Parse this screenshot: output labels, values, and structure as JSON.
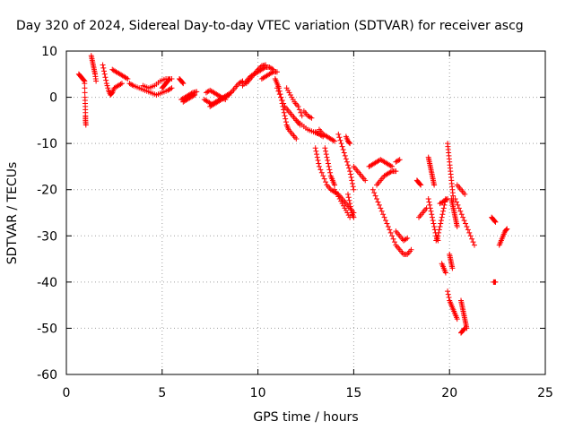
{
  "chart_data": {
    "type": "scatter",
    "title": "Day 320 of 2024, Sidereal Day-to-day VTEC variation (SDTVAR) for receiver ascg",
    "xlabel": "GPS time / hours",
    "ylabel": "SDTVAR / TECUs",
    "xlim": [
      0,
      25
    ],
    "ylim": [
      -60,
      10
    ],
    "x_ticks": [
      0,
      5,
      10,
      15,
      20,
      25
    ],
    "y_ticks": [
      10,
      0,
      -10,
      -20,
      -30,
      -40,
      -50,
      -60
    ],
    "grid": true,
    "marker": "+",
    "series_color": "#ff0000",
    "segments": [
      {
        "name": "s1",
        "x": [
          0.65,
          0.75,
          0.85,
          0.95
        ],
        "y": [
          5,
          4.5,
          4,
          3.5
        ]
      },
      {
        "name": "s2",
        "x": [
          0.95,
          0.97,
          0.99,
          1.0,
          1.0,
          1.02
        ],
        "y": [
          3,
          0,
          -2,
          -4,
          -5,
          -6
        ]
      },
      {
        "name": "s3",
        "x": [
          1.3,
          1.35,
          1.4,
          1.45,
          1.5,
          1.55
        ],
        "y": [
          9,
          8,
          7,
          6,
          5,
          3.5
        ]
      },
      {
        "name": "s4",
        "x": [
          1.9,
          2.0,
          2.1,
          2.2,
          2.3,
          2.4,
          2.5,
          2.7,
          2.9
        ],
        "y": [
          7,
          5,
          3,
          1.5,
          0.5,
          1,
          2,
          2.5,
          3
        ]
      },
      {
        "name": "s5",
        "x": [
          2.4,
          2.6,
          2.8,
          3.0,
          3.2
        ],
        "y": [
          6,
          5.5,
          5,
          4.5,
          4
        ]
      },
      {
        "name": "s6",
        "x": [
          3.3,
          3.5,
          3.8,
          4.1,
          4.4,
          4.7,
          5.0,
          5.3,
          5.5
        ],
        "y": [
          3,
          2.5,
          2,
          1.5,
          1,
          0.5,
          1,
          1.5,
          2
        ]
      },
      {
        "name": "s7",
        "x": [
          4.0,
          4.3,
          4.6,
          4.9,
          5.2,
          5.5
        ],
        "y": [
          2.5,
          2,
          2.5,
          3.5,
          4,
          4
        ]
      },
      {
        "name": "s8",
        "x": [
          5.0,
          5.1,
          5.2,
          5.3,
          5.4
        ],
        "y": [
          2,
          2.5,
          3,
          3.5,
          4
        ]
      },
      {
        "name": "s9",
        "x": [
          5.9,
          6.0,
          6.1
        ],
        "y": [
          4,
          3.5,
          3
        ]
      },
      {
        "name": "s10",
        "x": [
          6.0,
          6.2,
          6.4,
          6.6,
          6.8
        ],
        "y": [
          -0.5,
          0,
          0.5,
          1,
          1.2
        ]
      },
      {
        "name": "s11",
        "x": [
          6.1,
          6.3,
          6.5,
          6.7
        ],
        "y": [
          -1,
          -0.5,
          0,
          0.5
        ]
      },
      {
        "name": "s12",
        "x": [
          7.2,
          7.4,
          7.6,
          7.8,
          8.0,
          8.2,
          8.4,
          8.6
        ],
        "y": [
          -0.5,
          -1,
          -1.5,
          -1,
          -0.5,
          0,
          0.5,
          1
        ]
      },
      {
        "name": "s13",
        "x": [
          7.3,
          7.5,
          7.7,
          7.9,
          8.1,
          8.3
        ],
        "y": [
          1,
          1.5,
          1,
          0.5,
          0,
          -0.5
        ]
      },
      {
        "name": "s14",
        "x": [
          7.5,
          7.7,
          7.9,
          8.1,
          8.3,
          8.5
        ],
        "y": [
          -2,
          -1.5,
          -1,
          -0.5,
          0,
          0.5
        ]
      },
      {
        "name": "s15",
        "x": [
          8.6,
          8.8,
          9.0,
          9.2
        ],
        "y": [
          1,
          2,
          3,
          3.5
        ]
      },
      {
        "name": "s16",
        "x": [
          9.2,
          9.4,
          9.6,
          9.8,
          10.0,
          10.2,
          10.4,
          10.6,
          10.8
        ],
        "y": [
          2.5,
          3.5,
          4.5,
          5,
          5.5,
          6,
          6.5,
          6.5,
          6
        ]
      },
      {
        "name": "s17",
        "x": [
          9.4,
          9.6,
          9.8,
          10.0,
          10.2,
          10.4
        ],
        "y": [
          3,
          4,
          5,
          6,
          6.8,
          7
        ]
      },
      {
        "name": "s18",
        "x": [
          10.2,
          10.4,
          10.6,
          10.8,
          11.0
        ],
        "y": [
          4,
          4.5,
          5,
          5.5,
          5.5
        ]
      },
      {
        "name": "s19",
        "x": [
          10.9,
          11.0,
          11.1,
          11.2,
          11.3,
          11.4,
          11.5,
          11.6,
          11.8,
          12.0
        ],
        "y": [
          4,
          3,
          2,
          0,
          -2,
          -4,
          -6,
          -7,
          -8,
          -9
        ]
      },
      {
        "name": "s20",
        "x": [
          11.0,
          11.2,
          11.4,
          11.6,
          11.8,
          12.0,
          12.2
        ],
        "y": [
          2,
          0,
          -2,
          -3,
          -4,
          -5,
          -6
        ]
      },
      {
        "name": "s21",
        "x": [
          11.5,
          11.7,
          11.9,
          12.1,
          12.3
        ],
        "y": [
          2,
          0.5,
          -1,
          -2,
          -4
        ]
      },
      {
        "name": "s22",
        "x": [
          12.4,
          12.6,
          12.8
        ],
        "y": [
          -3,
          -4,
          -4.5
        ]
      },
      {
        "name": "s23",
        "x": [
          12.0,
          12.3,
          12.6,
          12.9,
          13.2
        ],
        "y": [
          -5,
          -6,
          -7,
          -7.5,
          -8
        ]
      },
      {
        "name": "s24",
        "x": [
          13.0,
          13.2,
          13.4
        ],
        "y": [
          -7.5,
          -8,
          -8.5
        ]
      },
      {
        "name": "s25",
        "x": [
          13.2,
          13.4,
          13.6,
          13.8,
          14.0
        ],
        "y": [
          -7,
          -8,
          -8.5,
          -9,
          -9.5
        ]
      },
      {
        "name": "s26",
        "x": [
          13.0,
          13.1,
          13.2,
          13.4,
          13.6,
          13.8,
          14.0,
          14.2,
          14.4,
          14.6,
          14.8,
          15.0
        ],
        "y": [
          -11,
          -13,
          -15,
          -17,
          -19,
          -20,
          -20.5,
          -21,
          -22,
          -23,
          -24,
          -25
        ]
      },
      {
        "name": "s27",
        "x": [
          13.5,
          13.6,
          13.7,
          13.8,
          13.9,
          14.0
        ],
        "y": [
          -11,
          -13,
          -15,
          -17,
          -18,
          -19
        ]
      },
      {
        "name": "s28",
        "x": [
          14.0,
          14.2,
          14.4,
          14.6,
          14.8
        ],
        "y": [
          -20,
          -21.5,
          -23,
          -24.5,
          -26
        ]
      },
      {
        "name": "s29",
        "x": [
          14.2,
          14.35,
          14.5,
          14.65,
          14.8,
          14.9,
          15.0
        ],
        "y": [
          -8,
          -10,
          -12,
          -14,
          -16,
          -18,
          -20
        ]
      },
      {
        "name": "s30",
        "x": [
          14.6,
          14.7,
          14.8
        ],
        "y": [
          -8.5,
          -9.5,
          -10
        ]
      },
      {
        "name": "s31",
        "x": [
          14.7,
          14.8,
          14.9,
          15.0
        ],
        "y": [
          -21,
          -23,
          -25,
          -26
        ]
      },
      {
        "name": "s32",
        "x": [
          15.0,
          15.2,
          15.4,
          15.6
        ],
        "y": [
          -15,
          -16,
          -17,
          -18
        ]
      },
      {
        "name": "s33",
        "x": [
          15.8,
          16.0,
          16.2,
          16.4,
          16.6,
          16.8,
          17.0
        ],
        "y": [
          -15,
          -14.5,
          -14,
          -13.5,
          -14,
          -14.5,
          -15
        ]
      },
      {
        "name": "s34",
        "x": [
          17.2,
          17.4
        ],
        "y": [
          -14,
          -13.5
        ]
      },
      {
        "name": "s35",
        "x": [
          16.0,
          16.2,
          16.4,
          16.6,
          16.8,
          17.0,
          17.2,
          17.4,
          17.6,
          17.8,
          18.0
        ],
        "y": [
          -20,
          -22,
          -24,
          -26,
          -28,
          -30,
          -32,
          -33,
          -34,
          -34,
          -33
        ]
      },
      {
        "name": "s36",
        "x": [
          16.2,
          16.4,
          16.6,
          16.8,
          17.0,
          17.2
        ],
        "y": [
          -19,
          -18,
          -17,
          -16.5,
          -16,
          -16
        ]
      },
      {
        "name": "s37",
        "x": [
          17.2,
          17.4,
          17.6,
          17.8
        ],
        "y": [
          -29,
          -30,
          -31,
          -30.5
        ]
      },
      {
        "name": "s38",
        "x": [
          18.3,
          18.4,
          18.5
        ],
        "y": [
          -18,
          -18.5,
          -19
        ]
      },
      {
        "name": "s39",
        "x": [
          18.4,
          18.6,
          18.8
        ],
        "y": [
          -26,
          -25,
          -24
        ]
      },
      {
        "name": "s40",
        "x": [
          18.9,
          18.95,
          19.0,
          19.05,
          19.1,
          19.15,
          19.2
        ],
        "y": [
          -13,
          -14,
          -15,
          -16,
          -17,
          -18,
          -19
        ]
      },
      {
        "name": "s41",
        "x": [
          18.9,
          19.0,
          19.1,
          19.2,
          19.3,
          19.4
        ],
        "y": [
          -22,
          -24,
          -26,
          -28,
          -30,
          -31
        ]
      },
      {
        "name": "s42",
        "x": [
          19.3,
          19.4,
          19.5,
          19.6,
          19.7,
          19.8
        ],
        "y": [
          -31,
          -30,
          -28,
          -26,
          -24,
          -22
        ]
      },
      {
        "name": "s43",
        "x": [
          19.5,
          19.7,
          19.9
        ],
        "y": [
          -23,
          -22.5,
          -22
        ]
      },
      {
        "name": "s44",
        "x": [
          19.6,
          19.7,
          19.8
        ],
        "y": [
          -36,
          -37,
          -38
        ]
      },
      {
        "name": "s45",
        "x": [
          19.9,
          19.95,
          20.0,
          20.05,
          20.1,
          20.15,
          20.2
        ],
        "y": [
          -10,
          -12,
          -14,
          -16,
          -18,
          -20,
          -22
        ]
      },
      {
        "name": "s46",
        "x": [
          20.1,
          20.15,
          20.2,
          20.25,
          20.3,
          20.35,
          20.4
        ],
        "y": [
          -22,
          -23,
          -24,
          -25,
          -26,
          -27,
          -28
        ]
      },
      {
        "name": "s47",
        "x": [
          20.3,
          20.5,
          20.7,
          20.9,
          21.1,
          21.3
        ],
        "y": [
          -22,
          -24,
          -26,
          -28,
          -30,
          -32
        ]
      },
      {
        "name": "s48",
        "x": [
          20.4,
          20.6,
          20.8
        ],
        "y": [
          -19,
          -20,
          -21
        ]
      },
      {
        "name": "s49",
        "x": [
          20.0,
          20.05,
          20.1,
          20.15
        ],
        "y": [
          -34,
          -35,
          -36,
          -37
        ]
      },
      {
        "name": "s50",
        "x": [
          19.9,
          20.0,
          20.1,
          20.2,
          20.3,
          20.4
        ],
        "y": [
          -42,
          -44,
          -45,
          -46,
          -47,
          -48
        ]
      },
      {
        "name": "s51",
        "x": [
          20.6,
          20.65,
          20.7,
          20.75,
          20.8,
          20.85,
          20.9
        ],
        "y": [
          -44,
          -45,
          -46,
          -47,
          -48,
          -49,
          -50
        ]
      },
      {
        "name": "s52",
        "x": [
          20.6,
          20.7,
          20.8
        ],
        "y": [
          -51,
          -50.5,
          -50
        ]
      },
      {
        "name": "s53",
        "x": [
          22.2,
          22.3,
          22.4
        ],
        "y": [
          -26,
          -26.5,
          -27
        ]
      },
      {
        "name": "s54",
        "x": [
          22.3,
          22.4
        ],
        "y": [
          -40,
          -40
        ]
      },
      {
        "name": "s55",
        "x": [
          22.6,
          22.7,
          22.8,
          22.9,
          23.0
        ],
        "y": [
          -32,
          -31,
          -30,
          -29,
          -28.5
        ]
      }
    ]
  }
}
